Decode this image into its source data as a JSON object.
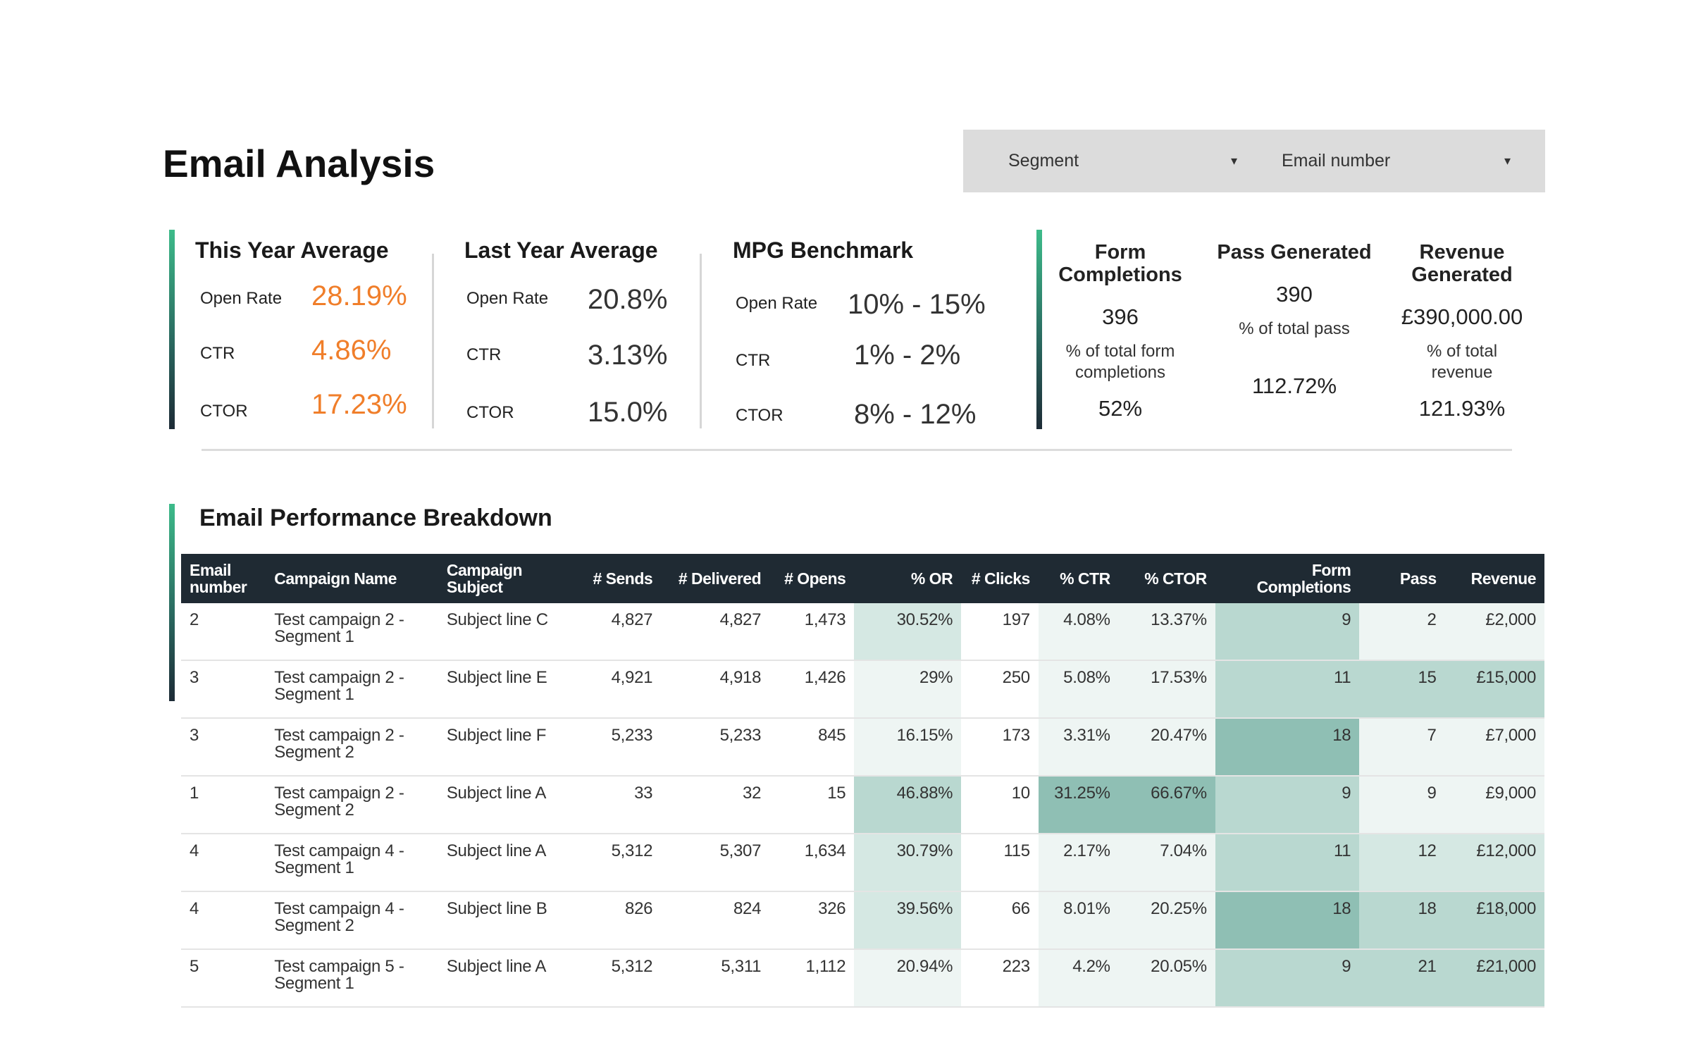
{
  "page_title": "Email Analysis",
  "filters": {
    "segment_label": "Segment",
    "email_number_label": "Email number",
    "arrow_glyph": "▾"
  },
  "summary": {
    "this_year": {
      "title": "This Year Average",
      "metrics": [
        {
          "label": "Open Rate",
          "value": "28.19%"
        },
        {
          "label": "CTR",
          "value": "4.86%"
        },
        {
          "label": "CTOR",
          "value": "17.23%"
        }
      ]
    },
    "last_year": {
      "title": "Last Year Average",
      "metrics": [
        {
          "label": "Open Rate",
          "value": "20.8%"
        },
        {
          "label": "CTR",
          "value": "3.13%"
        },
        {
          "label": "CTOR",
          "value": "15.0%"
        }
      ]
    },
    "benchmark": {
      "title": "MPG Benchmark",
      "metrics": [
        {
          "label": "Open Rate",
          "value": "10% - 15%"
        },
        {
          "label": "CTR",
          "value": "1% - 2%"
        },
        {
          "label": "CTOR",
          "value": "8% - 12%"
        }
      ]
    }
  },
  "kpis": [
    {
      "title": "Form Completions",
      "value": "396",
      "sub_label": "% of total form completions",
      "sub_value": "52%"
    },
    {
      "title": "Pass Generated",
      "value": "390",
      "sub_label": "% of total pass",
      "sub_value": "112.72%"
    },
    {
      "title": "Revenue Generated",
      "value": "£390,000.00",
      "sub_label": "% of total revenue",
      "sub_value": "121.93%"
    }
  ],
  "breakdown": {
    "title": "Email Performance Breakdown",
    "columns": [
      "Email number",
      "Campaign Name",
      "Campaign Subject",
      "# Sends",
      "# Delivered",
      "# Opens",
      "% OR",
      "# Clicks",
      "% CTR",
      "% CTOR",
      "Form Completions",
      "Pass",
      "Revenue"
    ],
    "rows": [
      [
        "2",
        "Test campaign 2 - Segment 1",
        "Subject line C",
        "4,827",
        "4,827",
        "1,473",
        "30.52%",
        "197",
        "4.08%",
        "13.37%",
        "9",
        "2",
        "£2,000"
      ],
      [
        "3",
        "Test campaign 2 - Segment 1",
        "Subject line E",
        "4,921",
        "4,918",
        "1,426",
        "29%",
        "250",
        "5.08%",
        "17.53%",
        "11",
        "15",
        "£15,000"
      ],
      [
        "3",
        "Test campaign 2 - Segment 2",
        "Subject line F",
        "5,233",
        "5,233",
        "845",
        "16.15%",
        "173",
        "3.31%",
        "20.47%",
        "18",
        "7",
        "£7,000"
      ],
      [
        "1",
        "Test campaign 2 - Segment 2",
        "Subject line A",
        "33",
        "32",
        "15",
        "46.88%",
        "10",
        "31.25%",
        "66.67%",
        "9",
        "9",
        "£9,000"
      ],
      [
        "4",
        "Test campaign 4 - Segment 1",
        "Subject line A",
        "5,312",
        "5,307",
        "1,634",
        "30.79%",
        "115",
        "2.17%",
        "7.04%",
        "11",
        "12",
        "£12,000"
      ],
      [
        "4",
        "Test campaign 4 - Segment 2",
        "Subject line B",
        "826",
        "824",
        "326",
        "39.56%",
        "66",
        "8.01%",
        "20.25%",
        "18",
        "18",
        "£18,000"
      ],
      [
        "5",
        "Test campaign 5 - Segment 1",
        "Subject line A",
        "5,312",
        "5,311",
        "1,112",
        "20.94%",
        "223",
        "4.2%",
        "20.05%",
        "9",
        "21",
        "£21,000"
      ]
    ],
    "heat_colors": {
      "lightest": "#eef5f3",
      "light": "#d5e8e3",
      "mid": "#b9d8d0",
      "dark": "#8fbfb4"
    }
  }
}
